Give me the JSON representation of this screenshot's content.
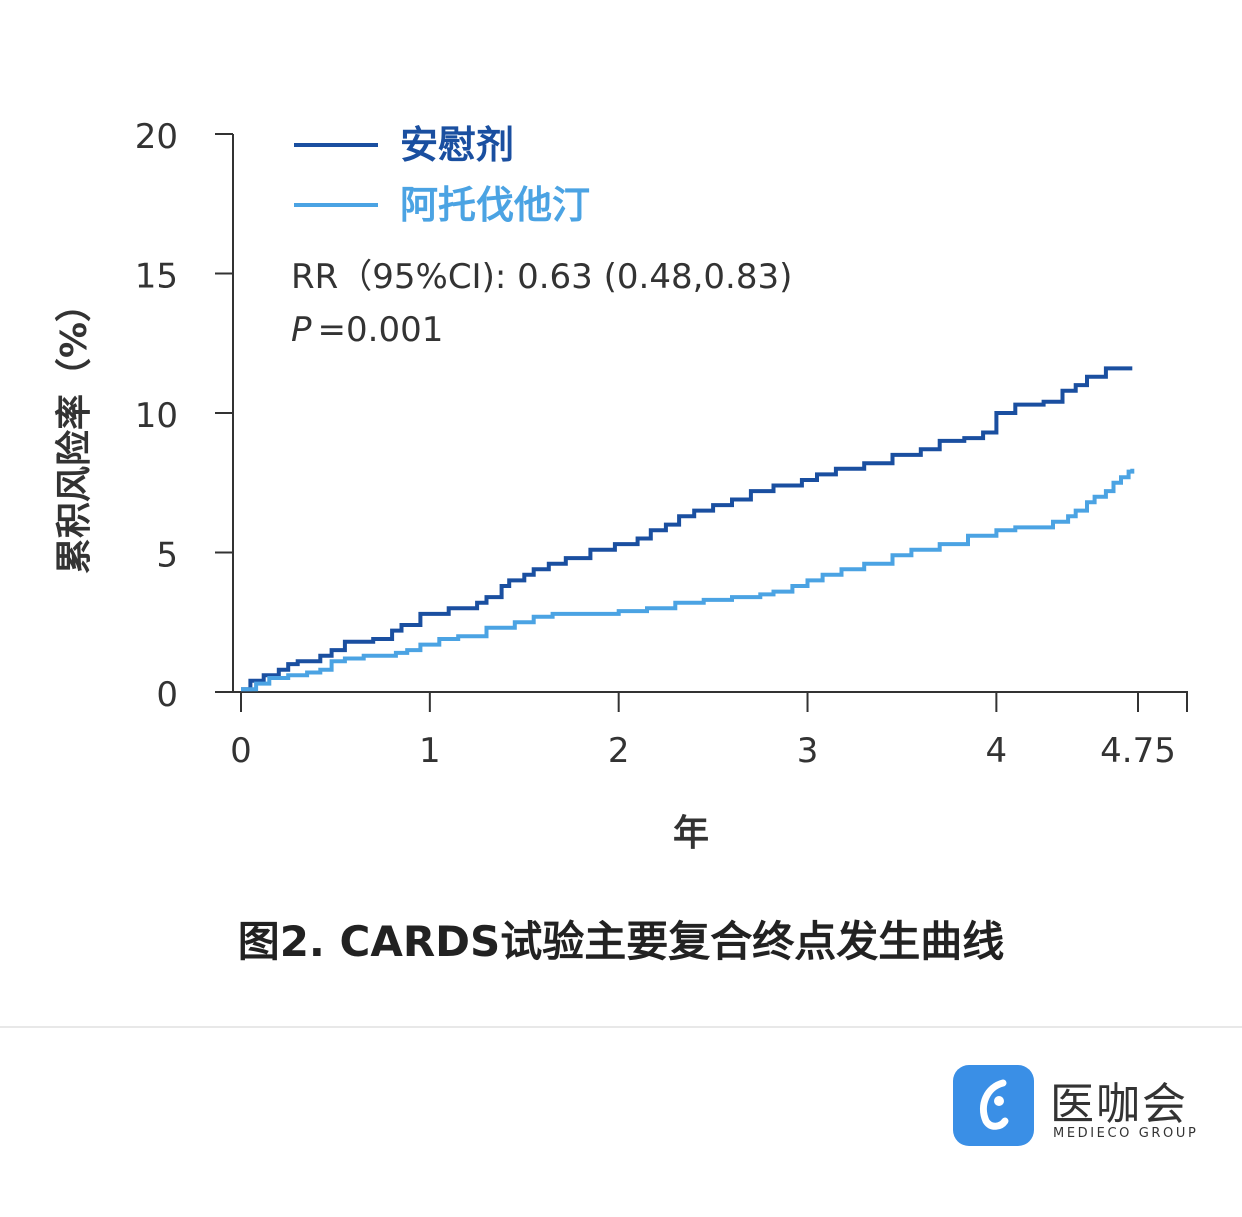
{
  "chart_data": {
    "type": "line",
    "subtype": "step",
    "caption": "图2. CARDS试验主要复合终点发生曲线",
    "ylabel": "累积风险率（%）",
    "xlabel": "年",
    "ylim": [
      0,
      20
    ],
    "xlim": [
      0,
      4.75
    ],
    "y_ticks": [
      "0",
      "5",
      "10",
      "15",
      "20"
    ],
    "x_ticks": [
      "0",
      "1",
      "2",
      "3",
      "4",
      "4.75"
    ],
    "annotation_rr": "RR（95%CI): 0.63 (0.48,0.83)",
    "annotation_p_letter": "P",
    "annotation_p_value": "=0.001",
    "legend_position": "top-left",
    "series": [
      {
        "name": "安慰剂",
        "color": "#1a4fa0",
        "x": [
          0,
          0.05,
          0.12,
          0.2,
          0.25,
          0.3,
          0.42,
          0.48,
          0.55,
          0.62,
          0.7,
          0.8,
          0.85,
          0.95,
          1.1,
          1.25,
          1.3,
          1.38,
          1.42,
          1.5,
          1.55,
          1.63,
          1.72,
          1.85,
          1.98,
          2.1,
          2.17,
          2.25,
          2.32,
          2.4,
          2.5,
          2.6,
          2.7,
          2.82,
          2.97,
          3.05,
          3.15,
          3.3,
          3.45,
          3.6,
          3.7,
          3.83,
          3.93,
          4.0,
          4.1,
          4.25,
          4.35,
          4.42,
          4.48,
          4.58,
          4.72
        ],
        "y": [
          0.1,
          0.4,
          0.6,
          0.8,
          1.0,
          1.1,
          1.3,
          1.5,
          1.8,
          1.8,
          1.9,
          2.2,
          2.4,
          2.8,
          3.0,
          3.2,
          3.4,
          3.8,
          4.0,
          4.2,
          4.4,
          4.6,
          4.8,
          5.1,
          5.3,
          5.5,
          5.8,
          6.0,
          6.3,
          6.5,
          6.7,
          6.9,
          7.2,
          7.4,
          7.6,
          7.8,
          8.0,
          8.2,
          8.5,
          8.7,
          9.0,
          9.1,
          9.3,
          10.0,
          10.3,
          10.4,
          10.8,
          11.0,
          11.3,
          11.6,
          11.6
        ]
      },
      {
        "name": "阿托伐他汀",
        "color": "#4ba3e3",
        "x": [
          0,
          0.08,
          0.15,
          0.25,
          0.35,
          0.42,
          0.48,
          0.55,
          0.65,
          0.75,
          0.82,
          0.88,
          0.95,
          1.05,
          1.15,
          1.3,
          1.45,
          1.55,
          1.65,
          1.8,
          2.0,
          2.15,
          2.3,
          2.45,
          2.6,
          2.75,
          2.82,
          2.92,
          3.0,
          3.08,
          3.18,
          3.3,
          3.45,
          3.55,
          3.7,
          3.85,
          4.0,
          4.1,
          4.3,
          4.38,
          4.42,
          4.48,
          4.52,
          4.58,
          4.62,
          4.66,
          4.7,
          4.72
        ],
        "y": [
          0.1,
          0.3,
          0.5,
          0.6,
          0.7,
          0.8,
          1.1,
          1.2,
          1.3,
          1.3,
          1.4,
          1.5,
          1.7,
          1.9,
          2.0,
          2.3,
          2.5,
          2.7,
          2.8,
          2.8,
          2.9,
          3.0,
          3.2,
          3.3,
          3.4,
          3.5,
          3.6,
          3.8,
          4.0,
          4.2,
          4.4,
          4.6,
          4.9,
          5.1,
          5.3,
          5.6,
          5.8,
          5.9,
          6.1,
          6.3,
          6.5,
          6.8,
          7.0,
          7.2,
          7.5,
          7.7,
          7.9,
          8.0
        ]
      }
    ]
  },
  "footer": {
    "brand_cn": "医咖会",
    "brand_en": "MEDIECO GROUP",
    "logo_color": "#3a8fe6",
    "logo_icon": "stylized-person-icon"
  }
}
